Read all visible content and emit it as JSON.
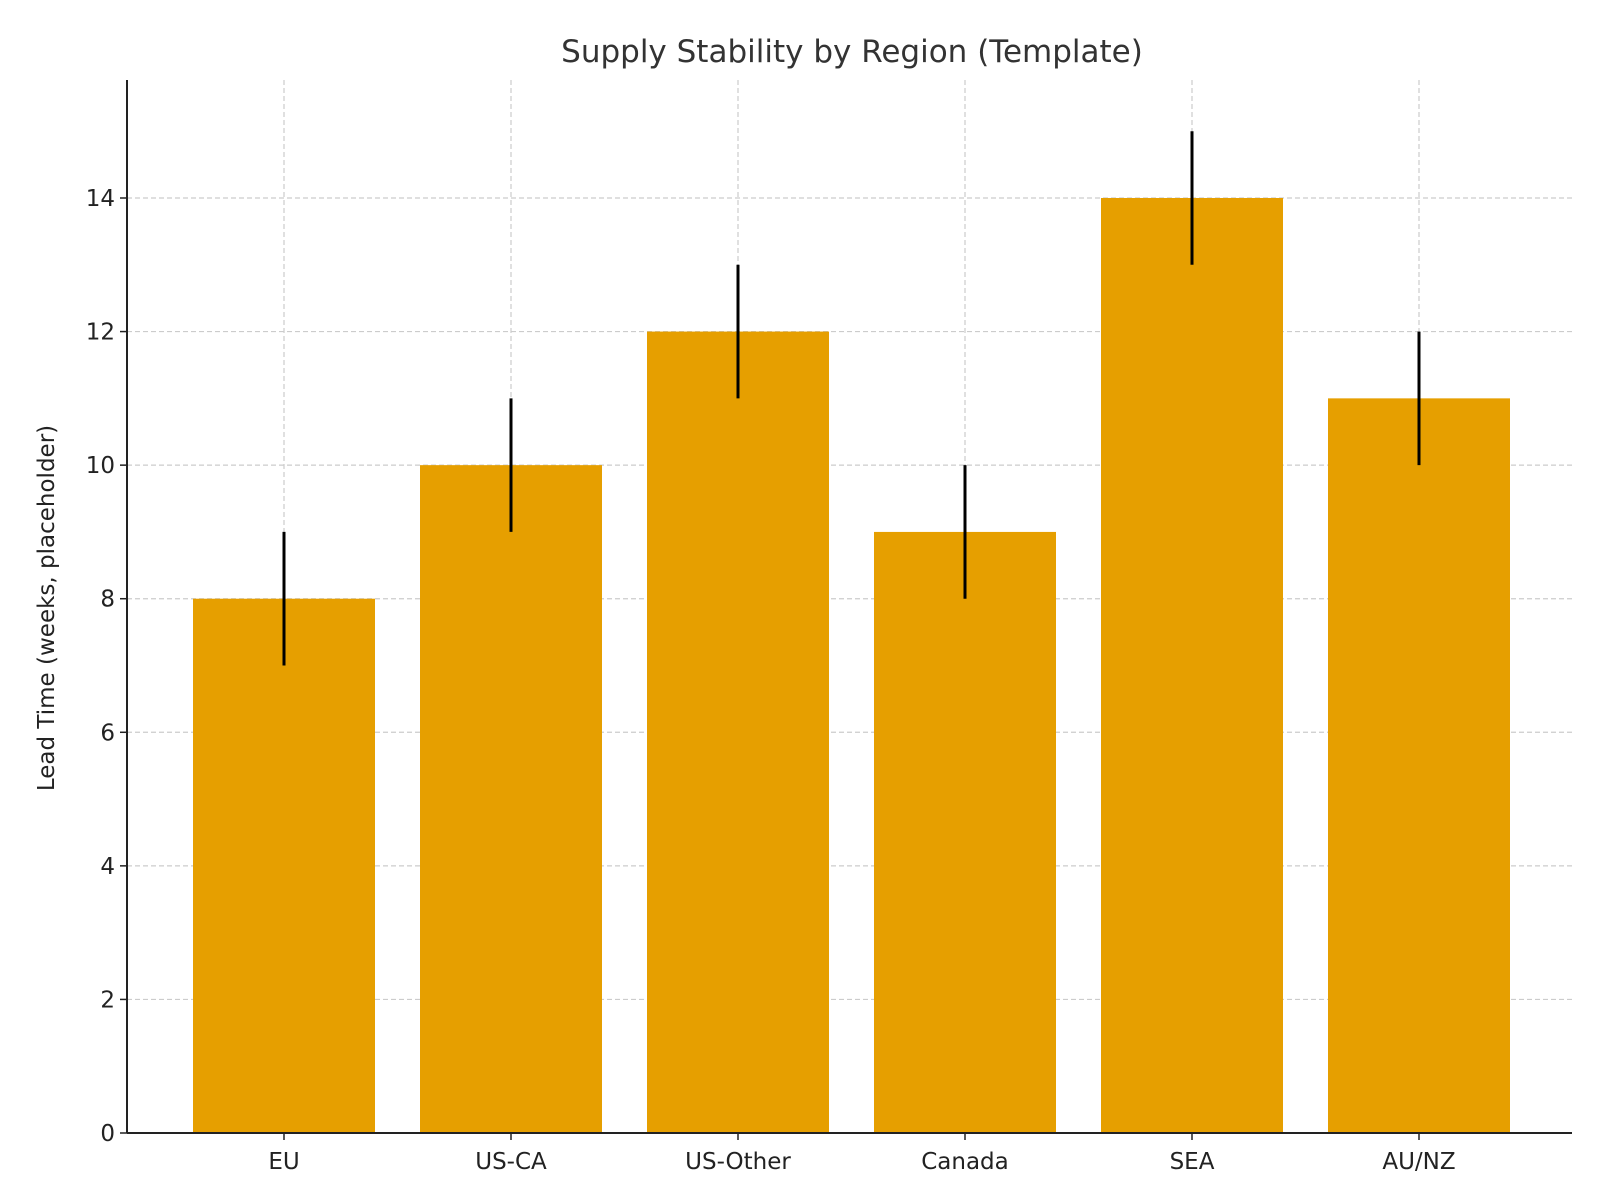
{
  "chart_data": {
    "type": "bar",
    "title": "Supply Stability by Region (Template)",
    "xlabel": "",
    "ylabel": "Lead Time (weeks, placeholder)",
    "categories": [
      "EU",
      "US-CA",
      "US-Other",
      "Canada",
      "SEA",
      "AU/NZ"
    ],
    "values": [
      8,
      10,
      12,
      9,
      14,
      11
    ],
    "errors": [
      1,
      1,
      1,
      1,
      1,
      1
    ],
    "ylim": [
      0,
      15.75
    ],
    "yticks": [
      0,
      2,
      4,
      6,
      8,
      10,
      12,
      14
    ],
    "grid": true,
    "legend": "none",
    "colors": {
      "bar": "#E69F00",
      "error": "#000000",
      "grid": "#cccccc"
    }
  }
}
